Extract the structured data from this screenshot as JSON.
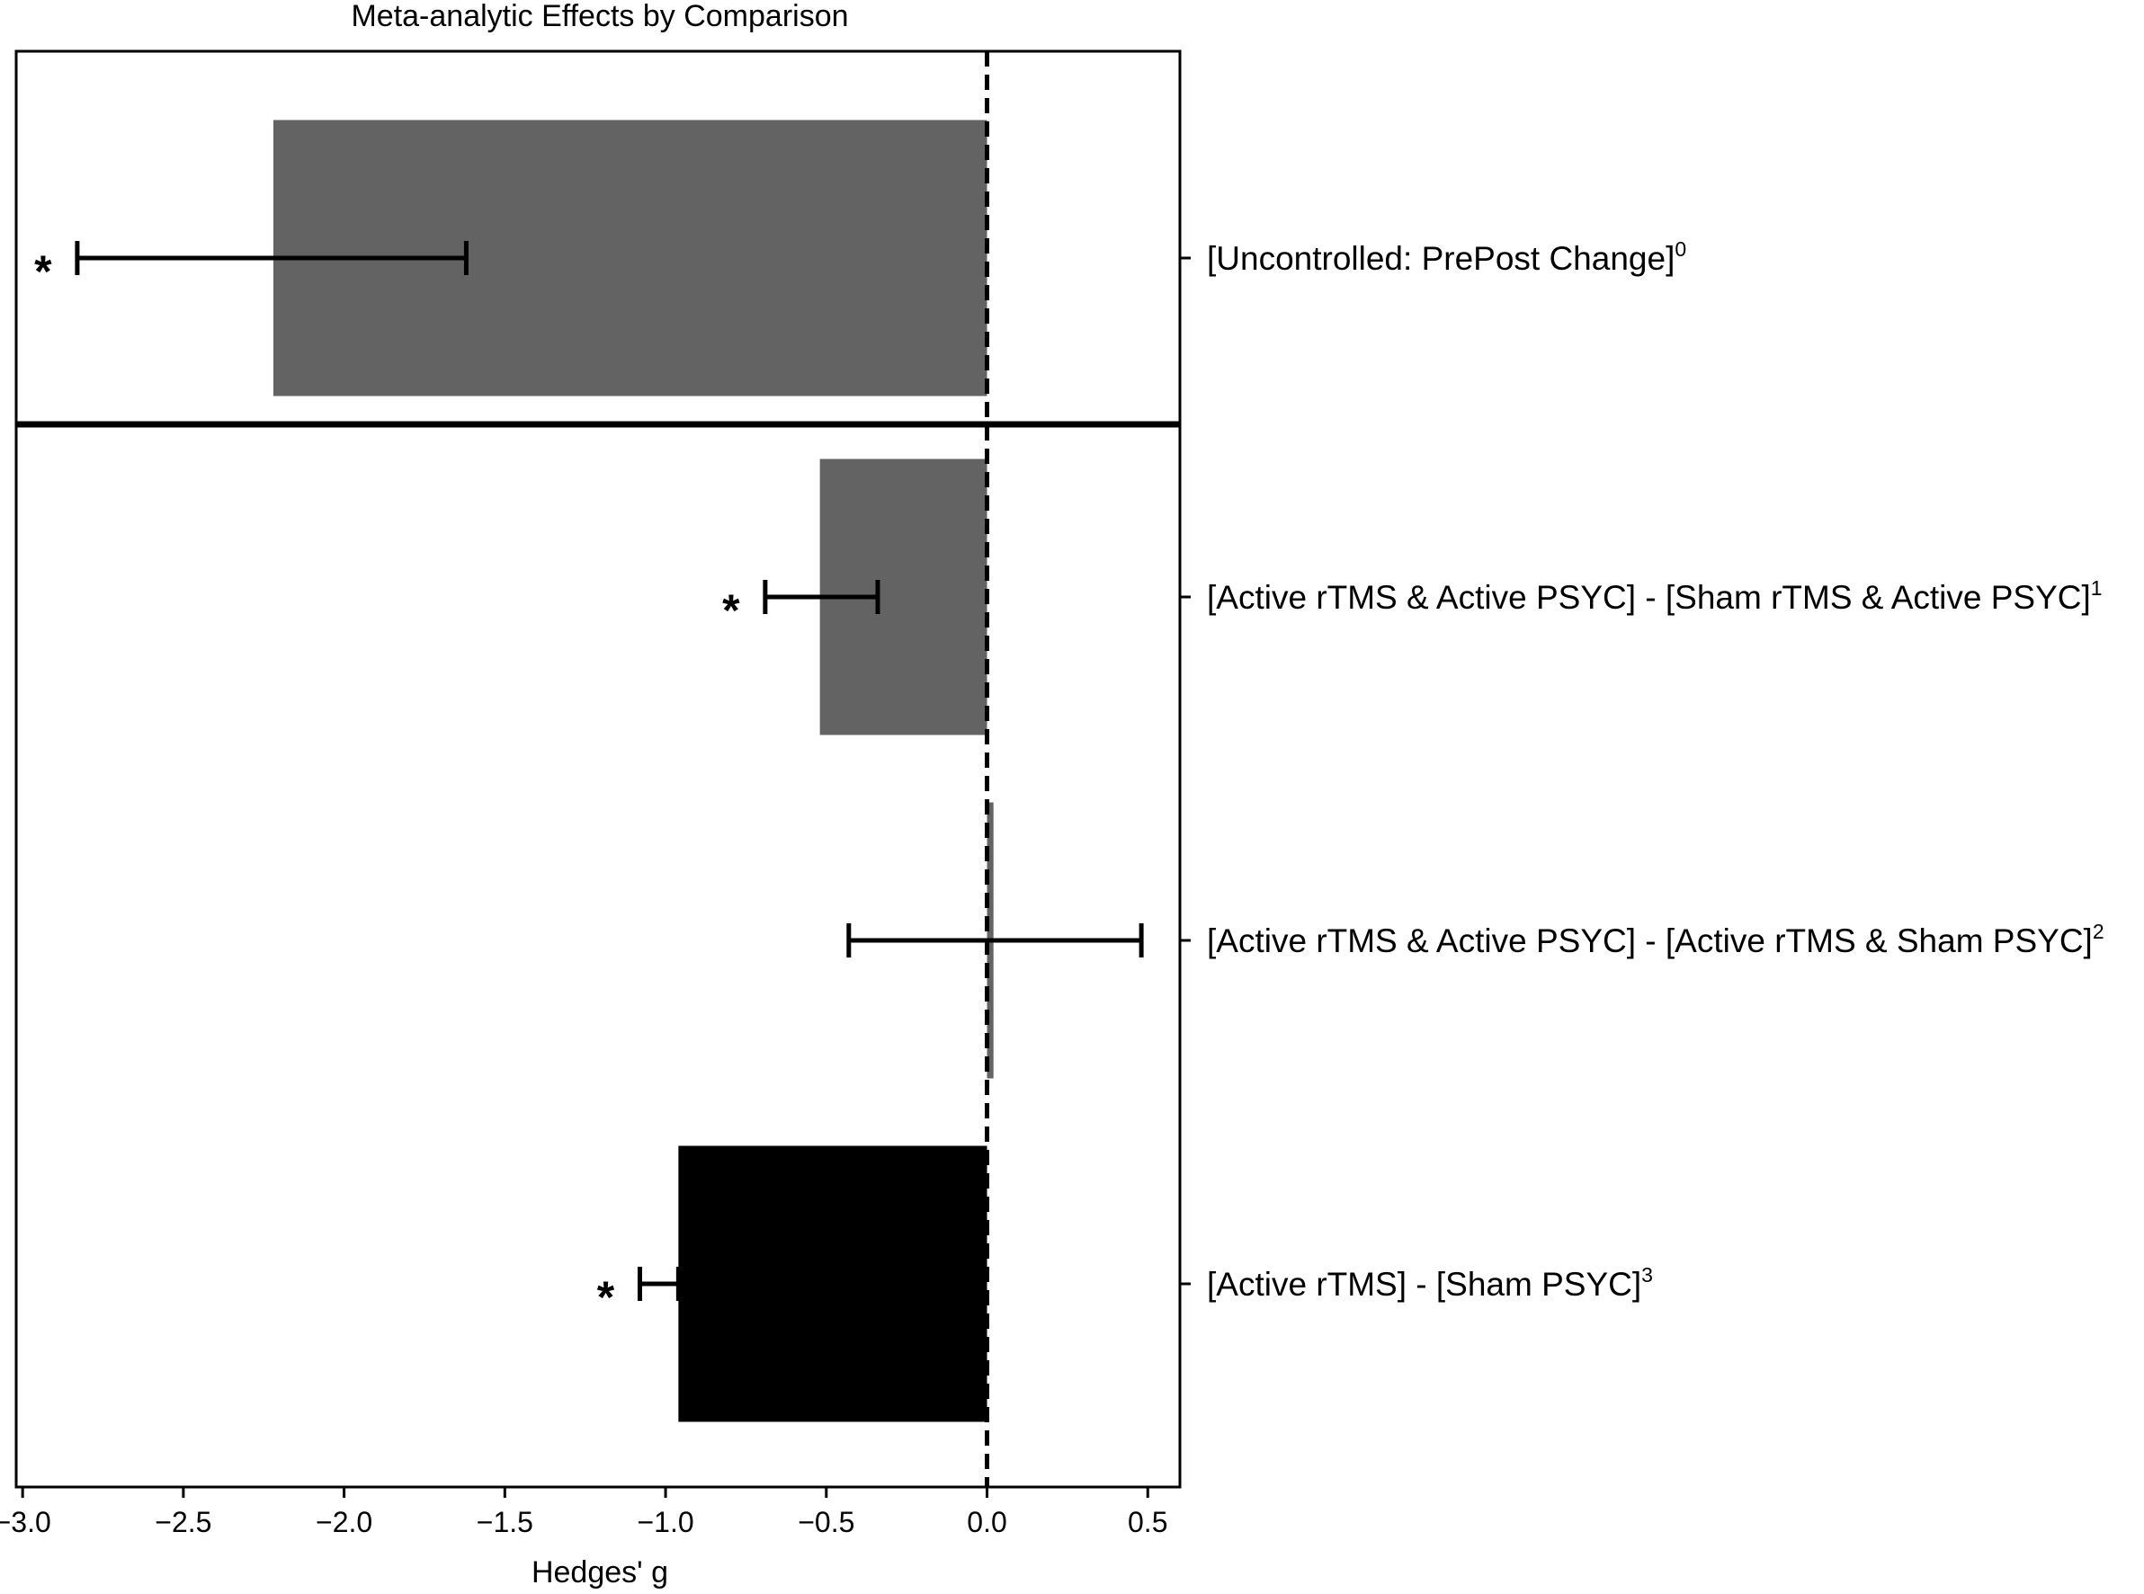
{
  "chart_data": {
    "type": "bar",
    "orientation": "horizontal",
    "title": "Meta-analytic Effects by Comparison",
    "xlabel": "Hedges' g",
    "ylabel": "",
    "xlim": [
      -3.02,
      0.6
    ],
    "xticks": [
      -3.0,
      -2.5,
      -2.0,
      -1.5,
      -1.0,
      -0.5,
      0.0,
      0.5
    ],
    "xtick_labels": [
      "−3.0",
      "−2.5",
      "−2.0",
      "−1.5",
      "−1.0",
      "−0.5",
      "0.0",
      "0.5"
    ],
    "reference_line": {
      "x": 0.0,
      "style": "dashed"
    },
    "grid": false,
    "legend": "none",
    "significance_marker": "*",
    "categories": [
      {
        "label": "[Uncontrolled: PrePost Change]",
        "superscript": "0",
        "value": -2.22,
        "ci": [
          -2.83,
          -1.62
        ],
        "significant": true,
        "color": "#636363"
      },
      {
        "label": "[Active rTMS & Active PSYC] - [Sham rTMS & Active PSYC]",
        "superscript": "1",
        "value": -0.52,
        "ci": [
          -0.69,
          -0.34
        ],
        "significant": true,
        "color": "#636363"
      },
      {
        "label": "[Active rTMS & Active PSYC] - [Active rTMS & Sham PSYC]",
        "superscript": "2",
        "value": 0.02,
        "ci": [
          -0.43,
          0.48
        ],
        "significant": false,
        "color": "#636363"
      },
      {
        "label": "[Active rTMS] - [Sham PSYC]",
        "superscript": "3",
        "value": -0.96,
        "ci": [
          -1.08,
          -0.96
        ],
        "significant": true,
        "color": "#000000"
      }
    ]
  }
}
